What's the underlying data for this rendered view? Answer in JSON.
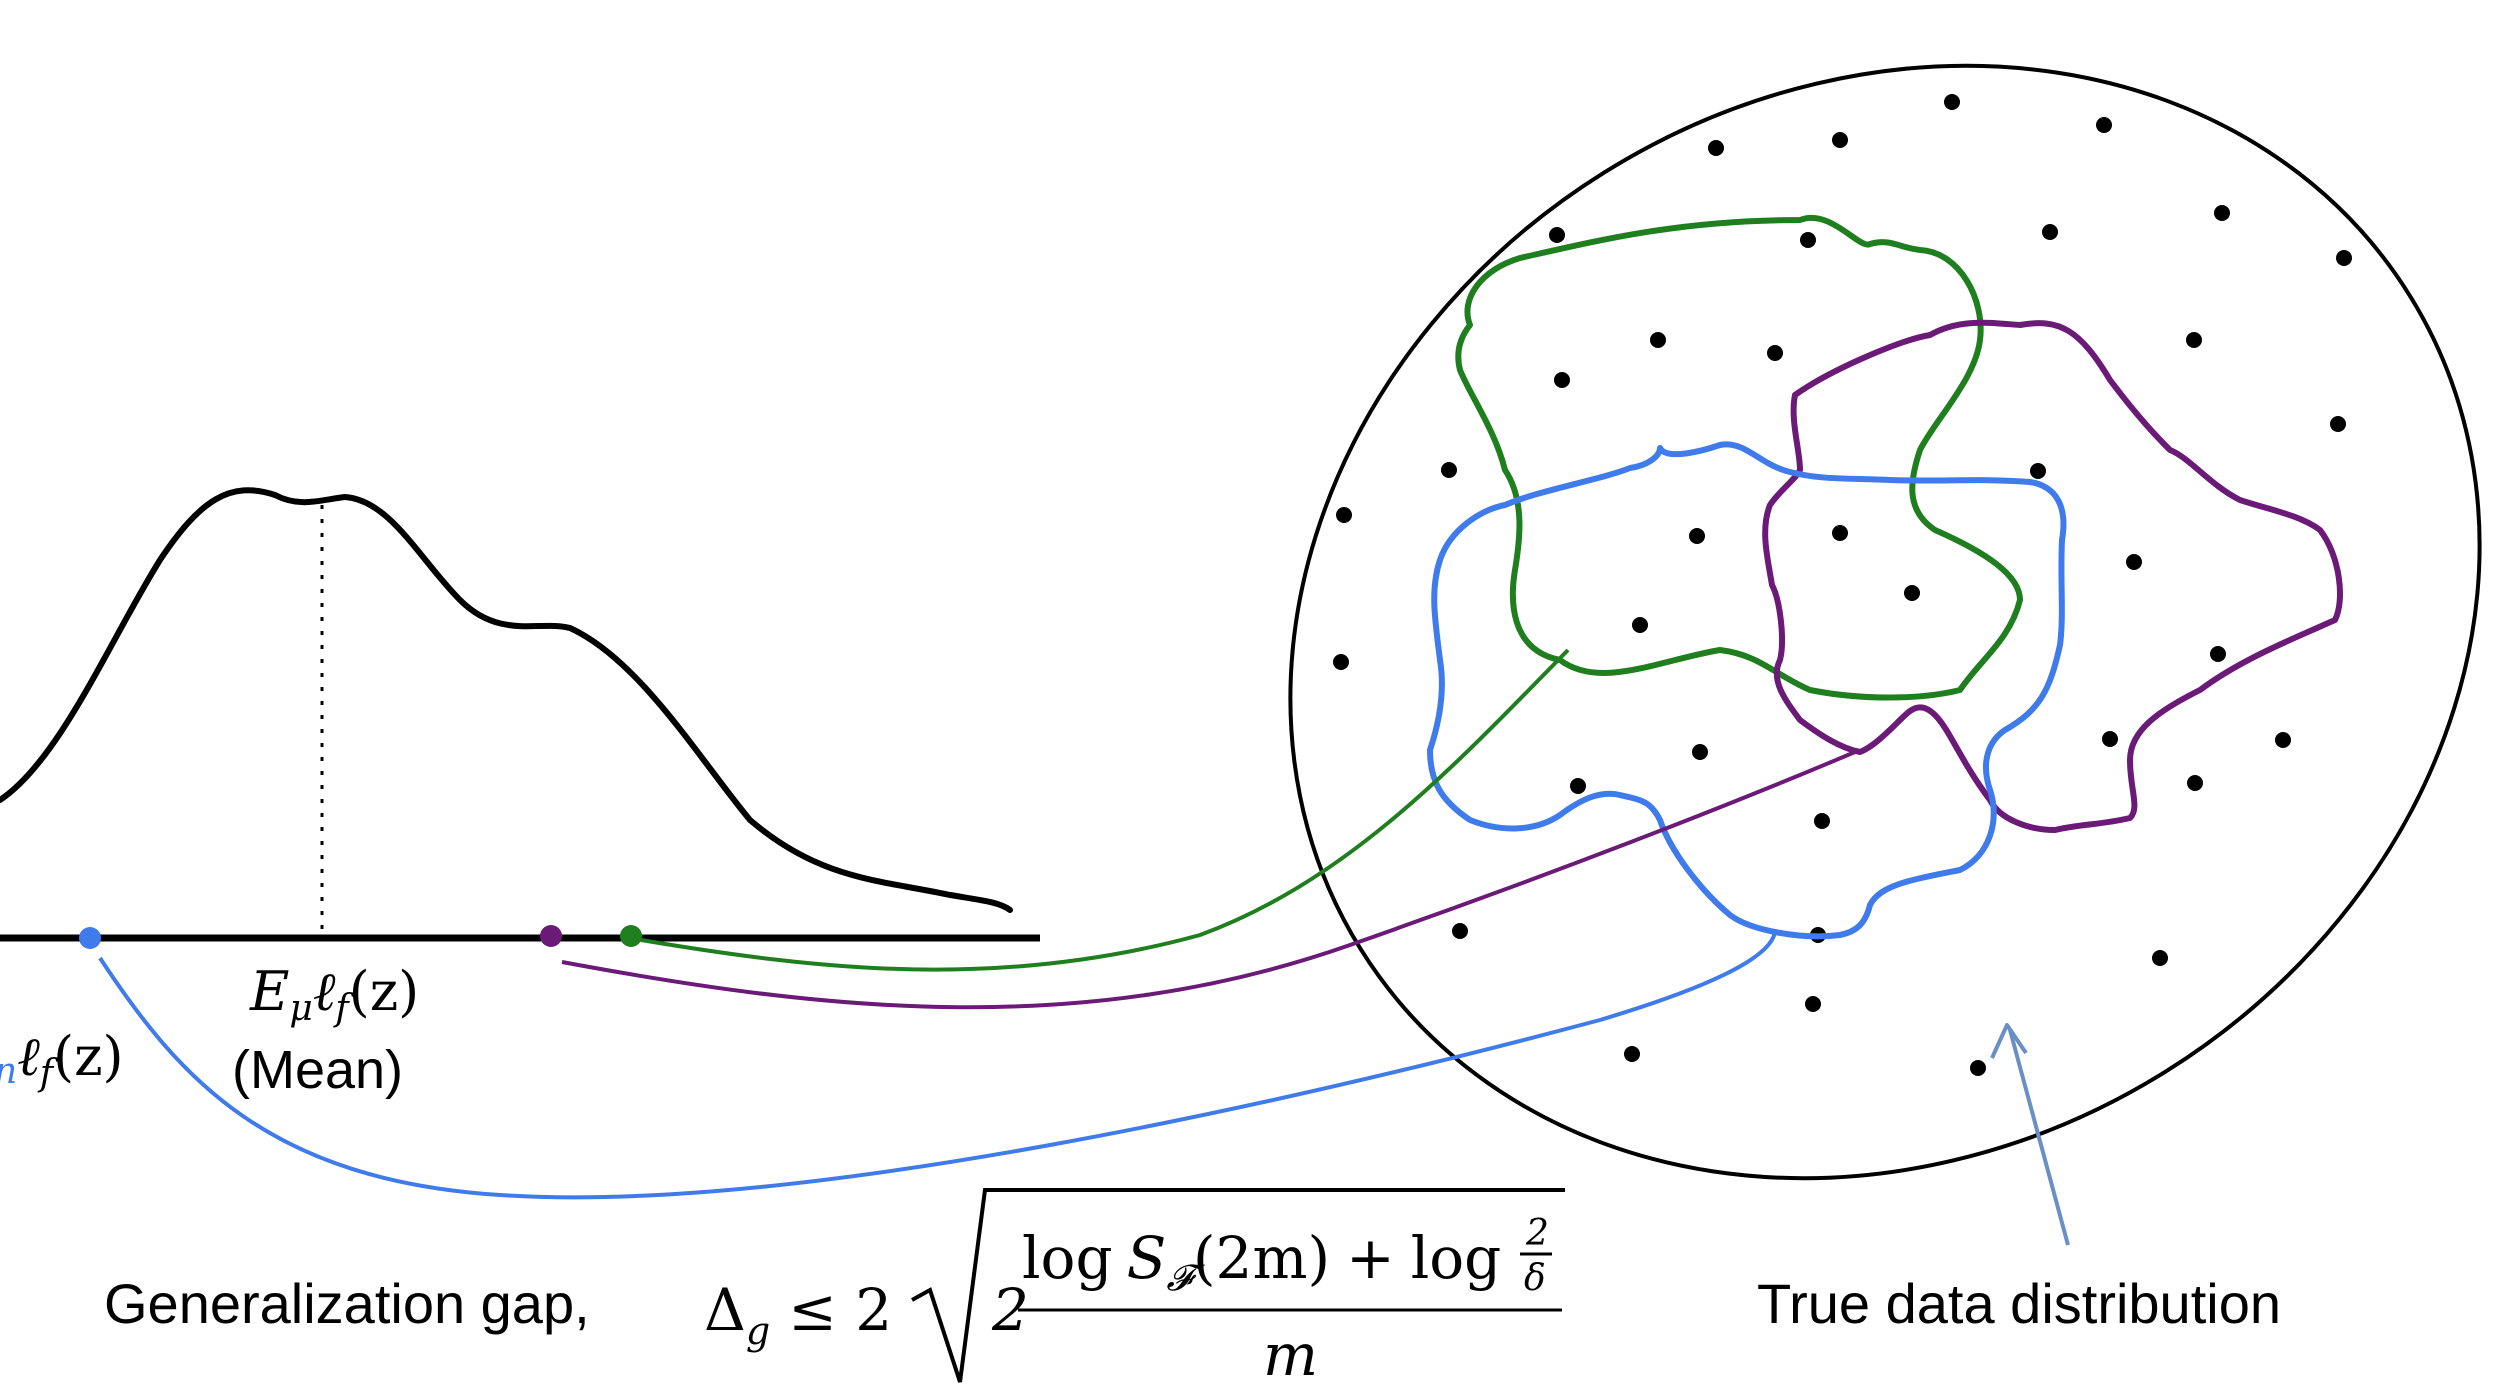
{
  "labels": {
    "mean_symbol": "E",
    "mean_sub": "μ",
    "mean_body": "ℓ",
    "mean_body_sub": "f",
    "mean_arg": "(z)",
    "mean_word": "(Mean)",
    "empirical_sub": "n",
    "empirical_body": "ℓ",
    "empirical_body_sub": "f",
    "empirical_arg": "(z)",
    "gap_word": "Generalization gap,",
    "true_dist": "True data distribution"
  },
  "formula": {
    "lhs": "Δ",
    "lhs_sub": "g",
    "relation": "≤ 2",
    "inner_coeff": "2",
    "num_log1": "log",
    "num_S": "S",
    "num_S_sub": "𝓕",
    "num_arg": "(2m)",
    "num_plus": "+",
    "num_log2": "log",
    "frac_num": "2",
    "frac_den": "δ",
    "denominator": "m"
  },
  "colors": {
    "black": "#000000",
    "green": "#1f7f1f",
    "purple": "#6b1a78",
    "blue": "#3f7bea",
    "arrow": "#6a8fc4"
  }
}
